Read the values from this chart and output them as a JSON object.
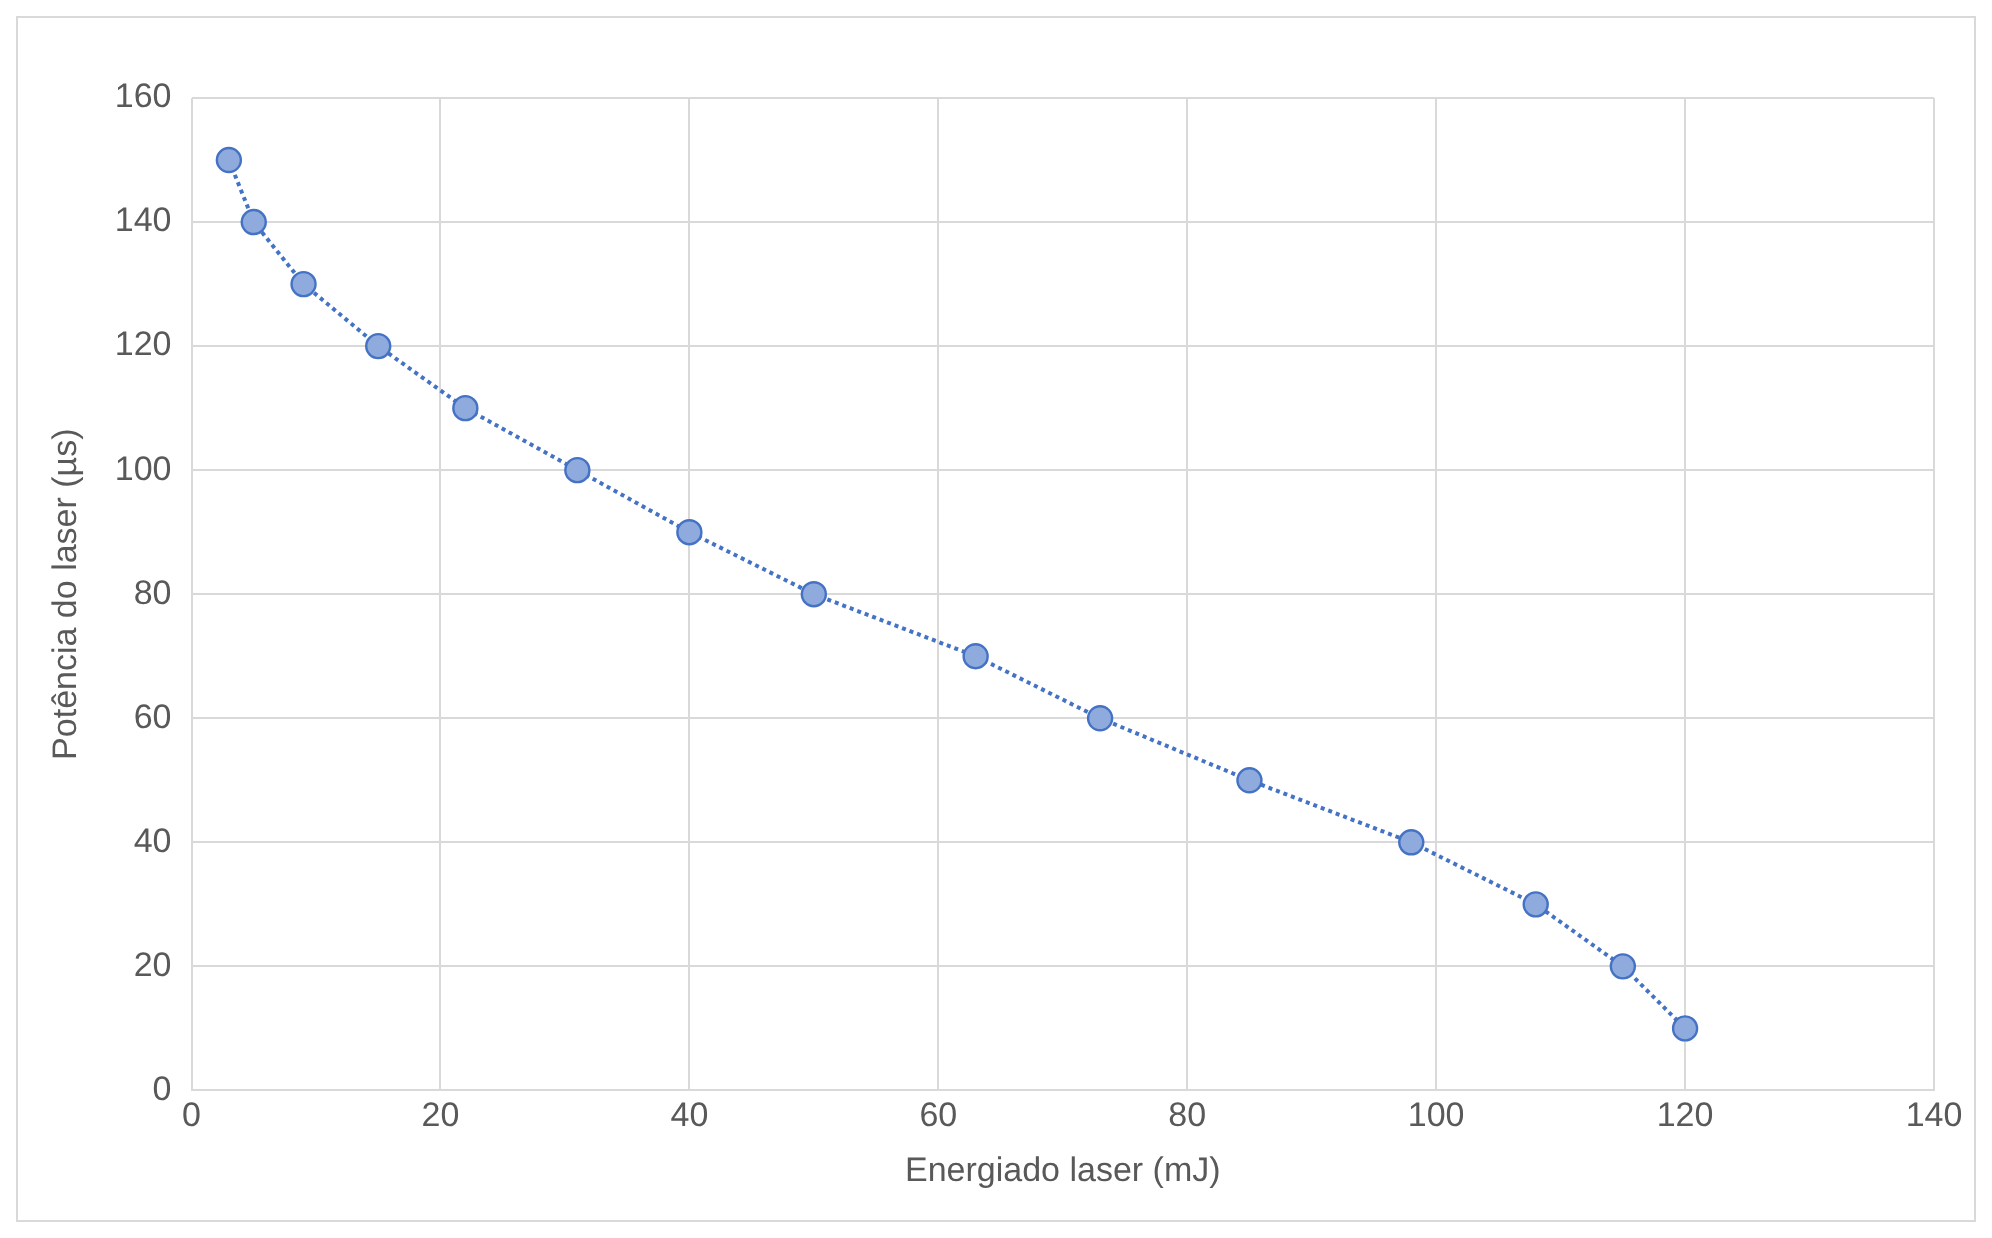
{
  "chart_data": {
    "type": "line",
    "xlabel": "Energiado laser (mJ)",
    "ylabel": "Potência do laser (µs)",
    "x": [
      3,
      5,
      9,
      15,
      22,
      31,
      40,
      50,
      63,
      73,
      85,
      98,
      108,
      115,
      120
    ],
    "series": [
      {
        "color": "#4472c4",
        "values": [
          150,
          140,
          130,
          120,
          110,
          100,
          90,
          80,
          70,
          60,
          50,
          40,
          30,
          20,
          10
        ]
      }
    ],
    "xlim": [
      0,
      140
    ],
    "xticks": [
      0,
      20,
      40,
      60,
      80,
      100,
      120,
      140
    ],
    "ylim": [
      0,
      160
    ],
    "yticks": [
      0,
      20,
      40,
      60,
      80,
      100,
      120,
      140,
      160
    ],
    "grid": true,
    "legend": false,
    "marker": "circle",
    "line_style": "dotted"
  }
}
